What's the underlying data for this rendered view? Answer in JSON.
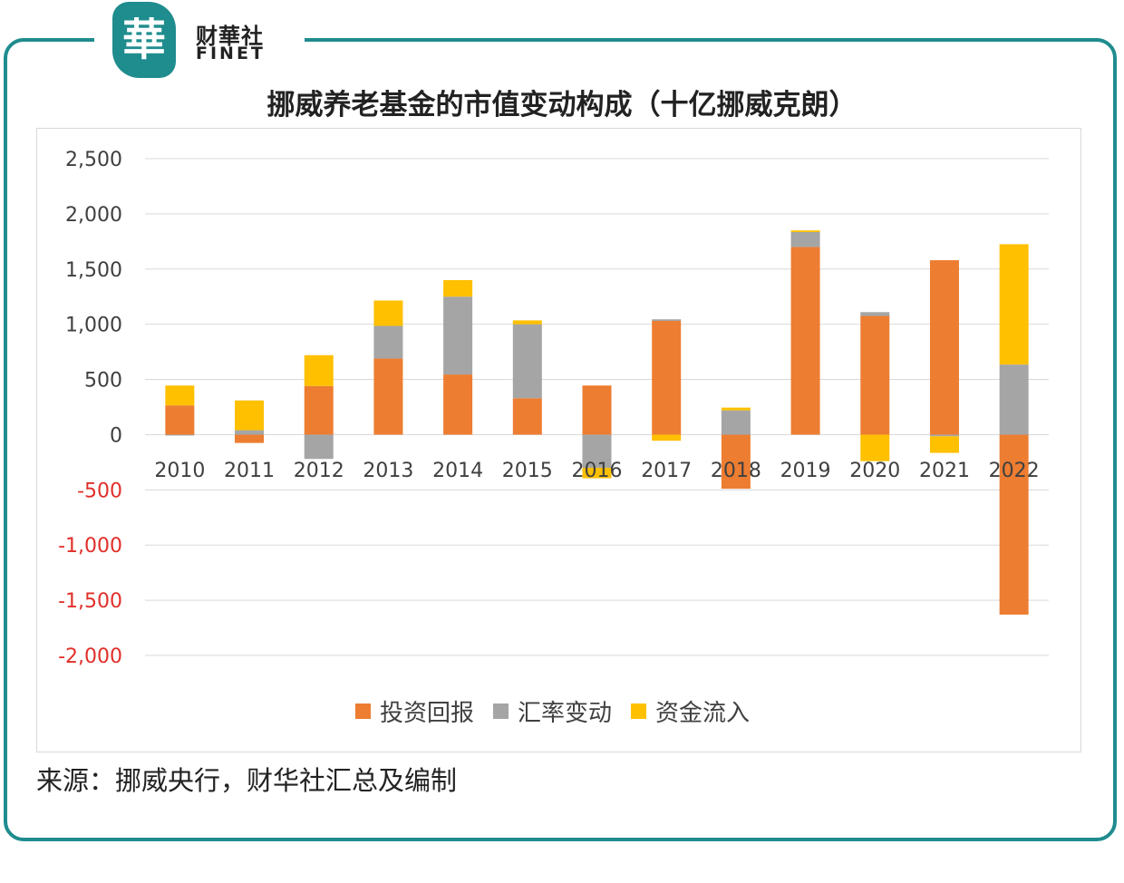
{
  "logo": {
    "cn": "财華社",
    "en": "FINET",
    "mark": "華"
  },
  "source": "来源：挪威央行，财华社汇总及编制",
  "chart_data": {
    "type": "bar",
    "stacked": true,
    "title": "挪威养老基金的市值变动构成（十亿挪威克朗）",
    "xlabel": "",
    "ylabel": "",
    "ylim": [
      -2000,
      2500
    ],
    "yticks": [
      2500,
      2000,
      1500,
      1000,
      500,
      0,
      -500,
      -1000,
      -1500,
      -2000
    ],
    "ytick_labels": [
      "2,500",
      "2,000",
      "1,500",
      "1,000",
      "500",
      "0",
      "-500",
      "-1,000",
      "-1,500",
      "-2,000"
    ],
    "grid": true,
    "legend_position": "bottom",
    "negative_label_color": "#e0302a",
    "categories": [
      "2010",
      "2011",
      "2012",
      "2013",
      "2014",
      "2015",
      "2016",
      "2017",
      "2018",
      "2019",
      "2020",
      "2021",
      "2022"
    ],
    "series": [
      {
        "name": "投资回报",
        "color": "#ed7d31",
        "values": [
          265,
          -75,
          440,
          690,
          545,
          330,
          445,
          1030,
          -490,
          1700,
          1075,
          1580,
          -1630
        ]
      },
      {
        "name": "汇率变动",
        "color": "#a5a5a5",
        "values": [
          -5,
          40,
          -220,
          295,
          705,
          670,
          -300,
          15,
          220,
          135,
          35,
          -15,
          635
        ]
      },
      {
        "name": "资金流入",
        "color": "#ffc000",
        "values": [
          180,
          270,
          280,
          230,
          150,
          35,
          -95,
          -55,
          25,
          15,
          -240,
          -150,
          1090
        ]
      }
    ]
  }
}
